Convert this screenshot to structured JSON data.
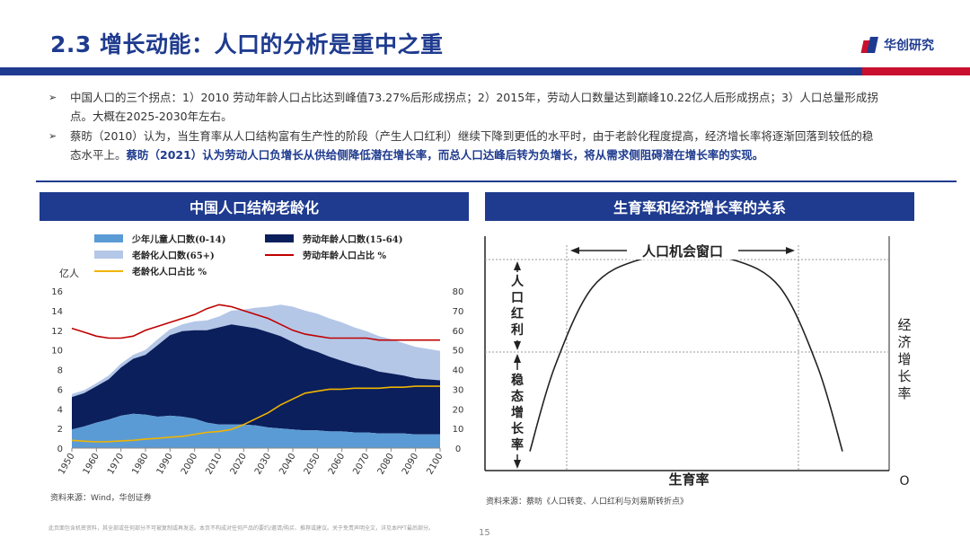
{
  "header": {
    "title": "2.3 增长动能：人口的分析是重中之重",
    "logo_text": "华创研究"
  },
  "bullets": [
    {
      "text": "中国人口的三个拐点：1）2010 劳动年龄人口占比达到峰值73.27%后形成拐点；2）2015年，劳动人口数量达到巅峰10.22亿人后形成拐点；3）人口总量形成拐点。大概在2025-2030年左右。"
    },
    {
      "text": "蔡昉（2010）认为，当生育率从人口结构富有生产性的阶段（产生人口红利）继续下降到更低的水平时，由于老龄化程度提高，经济增长率将逐渐回落到较低的稳态水平上。",
      "emphasis": "蔡昉（2021）认为劳动人口负增长从供给侧降低潜在增长率，而总人口达峰后转为负增长，将从需求侧阻碍潜在增长率的实现。"
    }
  ],
  "left_panel": {
    "heading": "中国人口结构老龄化",
    "unit_left": "亿人",
    "source": "资料来源：Wind，华创证券"
  },
  "right_panel": {
    "heading": "生育率和经济增长率的关系",
    "window_label": "人口机会窗口",
    "dividend_label": [
      "人",
      "口",
      "红",
      "利"
    ],
    "steady_label": [
      "稳",
      "态",
      "增",
      "长",
      "率"
    ],
    "y_label": [
      "经",
      "济",
      "增",
      "长",
      "率"
    ],
    "x_label": "生育率",
    "origin_label": "O",
    "source": "资料来源：蔡昉《人口转变、人口红利与刘易斯转折点》"
  },
  "footer": {
    "note": "此页面包含机密资料，其全部或任何部分不可被复制或再发送。本页不构成对任何产品的要约/邀请/购买、推荐或建议。关于免责声明全文，详见本PPT最后部分。",
    "page": "15"
  },
  "colors": {
    "brand": "#1f3b8f",
    "accent": "#c8102e",
    "youth": "#5b9bd5",
    "working": "#0b1f5c",
    "elderly": "#b4c7e7",
    "working_share": "#c00000",
    "elderly_share": "#f0b400"
  },
  "chart_data": [
    {
      "type": "area",
      "title": "中国人口结构老龄化",
      "ylabel": "亿人",
      "ylim": [
        0,
        16
      ],
      "y2lim": [
        0,
        80
      ],
      "x": [
        1950,
        1955,
        1960,
        1965,
        1970,
        1975,
        1980,
        1985,
        1990,
        1995,
        2000,
        2005,
        2010,
        2015,
        2020,
        2025,
        2030,
        2035,
        2040,
        2045,
        2050,
        2055,
        2060,
        2065,
        2070,
        2075,
        2080,
        2085,
        2090,
        2095,
        2100
      ],
      "xticks": [
        1950,
        1960,
        1970,
        1980,
        1990,
        2000,
        2010,
        2020,
        2030,
        2040,
        2050,
        2060,
        2070,
        2080,
        2090,
        2100
      ],
      "yticks": [
        0,
        2,
        4,
        6,
        8,
        10,
        12,
        14,
        16
      ],
      "y2ticks": [
        0,
        10,
        20,
        30,
        40,
        50,
        60,
        70,
        80
      ],
      "stacked_series": [
        {
          "name": "少年儿童人口数(0-14)",
          "color": "#5b9bd5",
          "values": [
            1.9,
            2.2,
            2.6,
            2.9,
            3.3,
            3.5,
            3.4,
            3.2,
            3.3,
            3.2,
            3.0,
            2.6,
            2.4,
            2.4,
            2.4,
            2.3,
            2.1,
            2.0,
            1.9,
            1.8,
            1.8,
            1.7,
            1.7,
            1.6,
            1.6,
            1.5,
            1.5,
            1.5,
            1.4,
            1.4,
            1.4
          ]
        },
        {
          "name": "劳动年龄人口数(15-64)",
          "color": "#0b1f5c",
          "values": [
            3.3,
            3.4,
            3.7,
            4.1,
            4.9,
            5.6,
            6.1,
            7.3,
            8.2,
            8.7,
            9.0,
            9.4,
            9.9,
            10.2,
            10.0,
            9.9,
            9.7,
            9.4,
            8.9,
            8.4,
            8.0,
            7.6,
            7.2,
            6.9,
            6.6,
            6.3,
            6.1,
            5.9,
            5.7,
            5.6,
            5.5
          ]
        },
        {
          "name": "老龄化人口数(65+)",
          "color": "#b4c7e7",
          "values": [
            0.3,
            0.3,
            0.3,
            0.4,
            0.4,
            0.4,
            0.5,
            0.6,
            0.6,
            0.7,
            0.9,
            1.0,
            1.1,
            1.4,
            1.7,
            2.1,
            2.6,
            3.2,
            3.6,
            3.8,
            3.9,
            3.9,
            3.9,
            3.8,
            3.7,
            3.6,
            3.5,
            3.3,
            3.2,
            3.1,
            3.0
          ]
        }
      ],
      "line_series": [
        {
          "name": "劳动年龄人口占比 %",
          "axis": "right",
          "color": "#c00000",
          "values": [
            61,
            59,
            57,
            56,
            56,
            57,
            60,
            62,
            64,
            66,
            68,
            71,
            73,
            72,
            70,
            68,
            66,
            63,
            60,
            58,
            57,
            56,
            56,
            56,
            56,
            55,
            55,
            55,
            55,
            55,
            55
          ]
        },
        {
          "name": "老龄化人口占比 %",
          "axis": "right",
          "color": "#f0b400",
          "values": [
            4,
            3.5,
            3.2,
            3.3,
            3.7,
            4,
            4.6,
            5,
            5.6,
            6,
            7,
            8,
            8.5,
            9.5,
            12,
            15,
            18,
            22,
            25,
            28,
            29,
            30,
            30,
            30.5,
            30.5,
            30.5,
            31,
            31,
            31.5,
            31.5,
            31.5
          ]
        }
      ]
    },
    {
      "type": "line",
      "title": "生育率和经济增长率的关系",
      "xlabel": "生育率",
      "ylabel": "经济增长率",
      "series": [
        {
          "x": [
            0.0,
            0.08,
            0.2,
            0.35,
            0.5,
            0.65,
            0.8,
            0.92,
            1.0
          ],
          "y": [
            0.02,
            0.45,
            0.85,
            0.99,
            1.0,
            0.99,
            0.85,
            0.45,
            0.02
          ]
        }
      ]
    }
  ]
}
